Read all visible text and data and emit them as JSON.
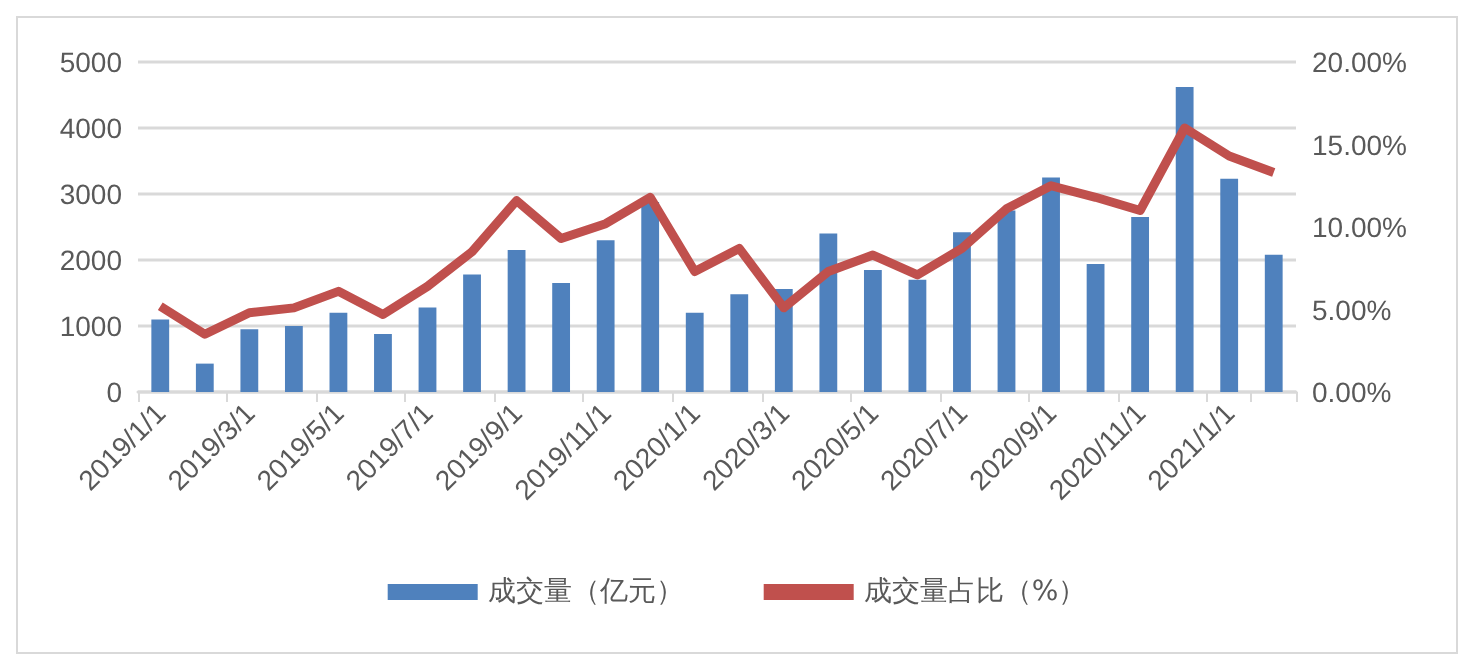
{
  "chart_data": {
    "type": "bar",
    "categories": [
      "2019/1/1",
      null,
      "2019/3/1",
      null,
      "2019/5/1",
      null,
      "2019/7/1",
      null,
      "2019/9/1",
      null,
      "2019/11/1",
      null,
      "2020/1/1",
      null,
      "2020/3/1",
      null,
      "2020/5/1",
      null,
      "2020/7/1",
      null,
      "2020/9/1",
      null,
      "2020/11/1",
      null,
      "2021/1/1",
      null
    ],
    "series": [
      {
        "name": "成交量（亿元）",
        "color": "#4f81bd",
        "values": [
          1100,
          430,
          950,
          1000,
          1200,
          880,
          1280,
          1780,
          2150,
          1650,
          2300,
          2880,
          1200,
          1480,
          1560,
          2400,
          1850,
          1700,
          2420,
          2750,
          3250,
          1940,
          2650,
          4620,
          3230,
          2080
        ]
      },
      {
        "name": "成交量占比（%）",
        "type": "line",
        "axis": "y2",
        "color": "#c0504d",
        "values": [
          5.2,
          3.5,
          4.8,
          5.1,
          6.1,
          4.7,
          6.4,
          8.5,
          11.6,
          9.3,
          10.2,
          11.8,
          7.3,
          8.7,
          5.1,
          7.3,
          8.3,
          7.1,
          8.7,
          11.1,
          12.5,
          11.8,
          11.0,
          16.0,
          14.3,
          13.3
        ]
      }
    ],
    "ylim": [
      0,
      5000
    ],
    "yticks": [
      0,
      1000,
      2000,
      3000,
      4000,
      5000
    ],
    "y2lim": [
      0,
      20
    ],
    "y2ticks": [
      {
        "value": 0,
        "label": "0.00%"
      },
      {
        "value": 5,
        "label": "5.00%"
      },
      {
        "value": 10,
        "label": "10.00%"
      },
      {
        "value": 15,
        "label": "15.00%"
      },
      {
        "value": 20,
        "label": "20.00%"
      }
    ],
    "grid": "y",
    "legend": "bottom",
    "marker": "none",
    "line_style": "solid"
  }
}
